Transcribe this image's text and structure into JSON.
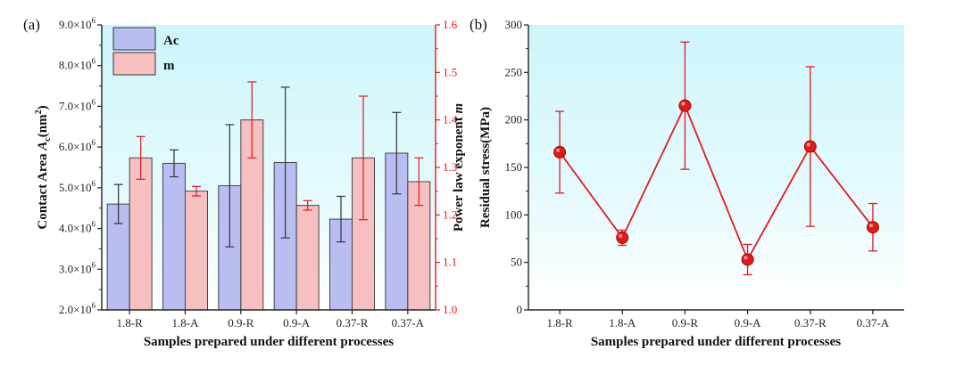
{
  "colors": {
    "bg_top": "#cdf6fb",
    "bg_mid": "#e3fafd",
    "bg_bottom": "#ffffff",
    "ac_fill": "#b9bdf2",
    "m_fill": "#f6bfc0",
    "red": "#e31a1c",
    "axis": "#222222"
  },
  "chart_data": [
    {
      "type": "bar",
      "panel_label": "(a)",
      "categories": [
        "1.8-R",
        "1.8-A",
        "0.9-R",
        "0.9-A",
        "0.37-R",
        "0.37-A"
      ],
      "xlabel": "Samples prepared under different processes",
      "ylabel_left": {
        "text": "Contact Area ",
        "italic": "A",
        "sub": "c",
        "unit_pre": "(nm",
        "sup": "2",
        "unit_post": ")"
      },
      "ylabel_right": {
        "text": "Power law exponent ",
        "italic": "m"
      },
      "left_axis": {
        "ylim": [
          2000000,
          9000000
        ],
        "ticks": [
          {
            "value": 2000000,
            "mantissa": "2.0×10",
            "exp": "6"
          },
          {
            "value": 3000000,
            "mantissa": "3.0×10",
            "exp": "6"
          },
          {
            "value": 4000000,
            "mantissa": "4.0×10",
            "exp": "6"
          },
          {
            "value": 5000000,
            "mantissa": "5.0×10",
            "exp": "6"
          },
          {
            "value": 6000000,
            "mantissa": "6.0×10",
            "exp": "6"
          },
          {
            "value": 7000000,
            "mantissa": "7.0×10",
            "exp": "6"
          },
          {
            "value": 8000000,
            "mantissa": "8.0×10",
            "exp": "6"
          },
          {
            "value": 9000000,
            "mantissa": "9.0×10",
            "exp": "6"
          }
        ]
      },
      "right_axis": {
        "ylim": [
          1.0,
          1.6
        ],
        "ticks": [
          "1.0",
          "1.1",
          "1.2",
          "1.3",
          "1.4",
          "1.5",
          "1.6"
        ]
      },
      "legend": [
        "Ac",
        "m"
      ],
      "legend_position": "top-left",
      "series": [
        {
          "name": "Ac",
          "axis": "left",
          "values": [
            4600000,
            5600000,
            5050000,
            5620000,
            4230000,
            5850000
          ],
          "errors": [
            480000,
            330000,
            1500000,
            1850000,
            560000,
            1000000
          ]
        },
        {
          "name": "m",
          "axis": "right",
          "values": [
            1.32,
            1.25,
            1.4,
            1.22,
            1.32,
            1.27
          ],
          "errors": [
            0.045,
            0.01,
            0.08,
            0.01,
            0.13,
            0.05
          ]
        }
      ]
    },
    {
      "type": "line",
      "panel_label": "(b)",
      "categories": [
        "1.8-R",
        "1.8-A",
        "0.9-R",
        "0.9-A",
        "0.37-R",
        "0.37-A"
      ],
      "xlabel": "Samples prepared under different processes",
      "ylabel": "Residual stress(MPa)",
      "ylim": [
        0,
        300
      ],
      "yticks": [
        "0",
        "50",
        "100",
        "150",
        "200",
        "250",
        "300"
      ],
      "series": [
        {
          "name": "Residual stress",
          "values": [
            166,
            76,
            215,
            53,
            172,
            87
          ],
          "errors": [
            43,
            8,
            67,
            16,
            84,
            25
          ]
        }
      ]
    }
  ]
}
